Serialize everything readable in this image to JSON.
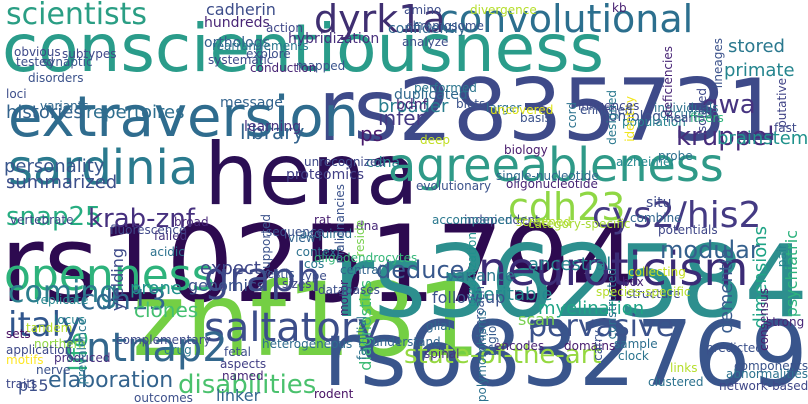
{
  "words": [
    {
      "text": "conscientiousness",
      "color": "#2a9c8a"
    },
    {
      "text": "rs2835731",
      "color": "#3e4a89"
    },
    {
      "text": "hena",
      "color": "#2b0f54"
    },
    {
      "text": "rs10251794",
      "color": "#2d0a50"
    },
    {
      "text": "znf181",
      "color": "#74cf44"
    },
    {
      "text": "rs362584",
      "color": "#2d8f8e"
    },
    {
      "text": "rs6832769",
      "color": "#39558c"
    },
    {
      "text": "extraversion",
      "color": "#2f6c8e"
    },
    {
      "text": "agreeableness",
      "color": "#2f9a88"
    },
    {
      "text": "sardinia",
      "color": "#2a7a8e"
    },
    {
      "text": "neuroticism",
      "color": "#3b2b76"
    },
    {
      "text": "openness",
      "color": "#2eb37c"
    },
    {
      "text": "convolutional",
      "color": "#2c6f8e"
    },
    {
      "text": "cdh23",
      "color": "#8fd744"
    },
    {
      "text": "cys2/his2",
      "color": "#443a83"
    },
    {
      "text": "saltatory",
      "color": "#3c4e8a"
    },
    {
      "text": "cntnap2",
      "color": "#33678d"
    },
    {
      "text": "graph",
      "color": "#3e4989"
    },
    {
      "text": "italy",
      "color": "#30568d"
    },
    {
      "text": "coming",
      "color": "#2c7e8e"
    },
    {
      "text": "dyrk1a",
      "color": "#3f2f71"
    },
    {
      "text": "scientists",
      "color": "#2a9e84"
    },
    {
      "text": "state-of-the-art",
      "color": "#95d840"
    },
    {
      "text": "snap25",
      "color": "#27ad81"
    },
    {
      "text": "krab-znf",
      "color": "#46307e"
    },
    {
      "text": "pervasive",
      "color": "#3b528b"
    },
    {
      "text": "cdh13",
      "color": "#31688e"
    },
    {
      "text": "disabilities",
      "color": "#4ac16d"
    },
    {
      "text": "modular",
      "color": "#35608d"
    },
    {
      "text": "deduce",
      "color": "#38588c"
    },
    {
      "text": "kruppel",
      "color": "#472d7b"
    },
    {
      "text": "gwa",
      "color": "#463480"
    },
    {
      "text": "ps",
      "color": "#481a6c"
    },
    {
      "text": "library",
      "color": "#33638d"
    },
    {
      "text": "life",
      "color": "#2fb47c"
    },
    {
      "text": "elaboration",
      "color": "#33638d"
    },
    {
      "text": "primate",
      "color": "#25858e"
    },
    {
      "text": "stored",
      "color": "#2a788e"
    },
    {
      "text": "brainstem",
      "color": "#20928c"
    },
    {
      "text": "infer",
      "color": "#443983"
    },
    {
      "text": "personality",
      "color": "#39568c"
    },
    {
      "text": "repertoires",
      "color": "#2e6e8e"
    },
    {
      "text": "histories",
      "color": "#33638d"
    },
    {
      "text": "broader",
      "color": "#287d8e"
    },
    {
      "text": "summarized",
      "color": "#3c4f8a"
    },
    {
      "text": "heritable",
      "color": "#23898e"
    },
    {
      "text": "dimensions",
      "color": "#20a486"
    },
    {
      "text": "dementia",
      "color": "#375b8d"
    },
    {
      "text": "psychiatric",
      "color": "#2db27d"
    },
    {
      "text": "prone",
      "color": "#21918c"
    },
    {
      "text": "clones",
      "color": "#44bf70"
    },
    {
      "text": "variance",
      "color": "#2a788e"
    },
    {
      "text": "expect",
      "color": "#3f4788"
    },
    {
      "text": "cadherin",
      "color": "#3d4d8a"
    },
    {
      "text": "hundreds",
      "color": "#482576"
    },
    {
      "text": "confidently",
      "color": "#31678e"
    },
    {
      "text": "hybridization",
      "color": "#472e7c"
    },
    {
      "text": "bdnf",
      "color": "#482878"
    },
    {
      "text": "ancestral",
      "color": "#26828e"
    },
    {
      "text": "yielding",
      "color": "#3e4a89"
    },
    {
      "text": "genomics",
      "color": "#3b528b"
    },
    {
      "text": "linker",
      "color": "#32658e"
    },
    {
      "text": "p15",
      "color": "#3c4f8a"
    },
    {
      "text": "message",
      "color": "#33638d"
    },
    {
      "text": "cdna",
      "color": "#24878e"
    },
    {
      "text": "scan",
      "color": "#7ad151"
    },
    {
      "text": "diagnostics",
      "color": "#3cbb75"
    },
    {
      "text": "fast",
      "color": "#3e4989"
    },
    {
      "text": "putative",
      "color": "#414487"
    },
    {
      "text": "myelination",
      "color": "#20a486"
    },
    {
      "text": "deep",
      "color": "#c2df23"
    },
    {
      "text": "situ",
      "color": "#3e4989"
    },
    {
      "text": "biology",
      "color": "#481b6d"
    },
    {
      "text": "homolog",
      "color": "#3b528b"
    },
    {
      "text": "orthologs",
      "color": "#355f8d"
    },
    {
      "text": "learning",
      "color": "#46337f"
    },
    {
      "text": "proteomics",
      "color": "#424086"
    },
    {
      "text": "duplicated",
      "color": "#31688e"
    },
    {
      "text": "follow-up",
      "color": "#3b528b"
    },
    {
      "text": "oligodendrocytes",
      "color": "#35b779"
    },
    {
      "text": "motor",
      "color": "#482173"
    },
    {
      "text": "rat",
      "color": "#482071"
    },
    {
      "text": "acquired",
      "color": "#2e6e8e"
    },
    {
      "text": "context",
      "color": "#2d718e"
    },
    {
      "text": "view",
      "color": "#33638d"
    },
    {
      "text": "sizes",
      "color": "#3f4788"
    },
    {
      "text": "testis",
      "color": "#3a538b"
    },
    {
      "text": "failed",
      "color": "#46327e"
    },
    {
      "text": "acidic",
      "color": "#2c728e"
    },
    {
      "text": "combine",
      "color": "#32658e"
    },
    {
      "text": "population",
      "color": "#26818e"
    },
    {
      "text": "alzheimer",
      "color": "#23888e"
    },
    {
      "text": "probe",
      "color": "#2d708e"
    },
    {
      "text": "enriched",
      "color": "#3b518b"
    },
    {
      "text": "glial",
      "color": "#31688e"
    },
    {
      "text": "encodes",
      "color": "#482576"
    },
    {
      "text": "spinal",
      "color": "#46337f"
    },
    {
      "text": "approach",
      "color": "#3a548c"
    },
    {
      "text": "fetal",
      "color": "#3d4e8a"
    },
    {
      "text": "aspects",
      "color": "#424086"
    },
    {
      "text": "named",
      "color": "#482878"
    },
    {
      "text": "heterogeneous",
      "color": "#2f6b8e"
    },
    {
      "text": "familial",
      "color": "#2c728e"
    },
    {
      "text": "understand",
      "color": "#32658e"
    },
    {
      "text": "domains",
      "color": "#481c6e"
    },
    {
      "text": "sample",
      "color": "#2e6f8e"
    },
    {
      "text": "clock",
      "color": "#2b748e"
    },
    {
      "text": "links",
      "color": "#b5de2b"
    },
    {
      "text": "predicted",
      "color": "#3b518b"
    },
    {
      "text": "components",
      "color": "#3a538b"
    },
    {
      "text": "consensus",
      "color": "#482071"
    },
    {
      "text": "abnormalities",
      "color": "#2c728e"
    },
    {
      "text": "network-based",
      "color": "#3f4788"
    },
    {
      "text": "clustered",
      "color": "#2c728e"
    },
    {
      "text": "rodent",
      "color": "#471164"
    },
    {
      "text": "outcomes",
      "color": "#3c4f8a"
    },
    {
      "text": "polymorphisms",
      "color": "#2d718e"
    },
    {
      "text": "drug",
      "color": "#2a788e"
    },
    {
      "text": "traits",
      "color": "#3e4989"
    },
    {
      "text": "nerve",
      "color": "#3b528b"
    },
    {
      "text": "produced",
      "color": "#472f7d"
    },
    {
      "text": "motifs",
      "color": "#fde725"
    },
    {
      "text": "northern",
      "color": "#8fd744"
    },
    {
      "text": "locus",
      "color": "#26828e"
    },
    {
      "text": "complementary",
      "color": "#3e4a89"
    },
    {
      "text": "application",
      "color": "#3e4989"
    },
    {
      "text": "sets",
      "color": "#470e61"
    },
    {
      "text": "tandem",
      "color": "#b8de29"
    },
    {
      "text": "replicate",
      "color": "#24868e"
    },
    {
      "text": "prevalence",
      "color": "#2a788e"
    },
    {
      "text": "vertebrate",
      "color": "#3f4788"
    },
    {
      "text": "fluorescence",
      "color": "#3f4889"
    },
    {
      "text": "broad",
      "color": "#482878"
    },
    {
      "text": "supported",
      "color": "#3b528b"
    },
    {
      "text": "sequence",
      "color": "#3b518b"
    },
    {
      "text": "cos",
      "color": "#2a788e"
    },
    {
      "text": "type",
      "color": "#3d4e8a"
    },
    {
      "text": "databases",
      "color": "#3c4f8a"
    },
    {
      "text": "central",
      "color": "#32658e"
    },
    {
      "text": "dna",
      "color": "#482979"
    },
    {
      "text": "malignancies",
      "color": "#3b528b"
    },
    {
      "text": "reside",
      "color": "#7ad151"
    },
    {
      "text": "unrecognized",
      "color": "#3e4989"
    },
    {
      "text": "independent",
      "color": "#3f4889"
    },
    {
      "text": "evolutionary",
      "color": "#3b528b"
    },
    {
      "text": "single-nucleotide",
      "color": "#31688e"
    },
    {
      "text": "oligonucleotide",
      "color": "#482576"
    },
    {
      "text": "screened",
      "color": "#b2dd2d"
    },
    {
      "text": "category-specific",
      "color": "#a8db34"
    },
    {
      "text": "accompanied",
      "color": "#2a788e"
    },
    {
      "text": "organization",
      "color": "#21908d"
    },
    {
      "text": "region",
      "color": "#375b8d"
    },
    {
      "text": "carry",
      "color": "#3a538b"
    },
    {
      "text": "constructed",
      "color": "#2c728e"
    },
    {
      "text": "collecting",
      "color": "#c5e021"
    },
    {
      "text": "box",
      "color": "#482374"
    },
    {
      "text": "structure",
      "color": "#3e4989"
    },
    {
      "text": "species-specific",
      "color": "#b5de2b"
    },
    {
      "text": "strong",
      "color": "#482878"
    },
    {
      "text": "potentials",
      "color": "#3f4788"
    },
    {
      "text": "pair",
      "color": "#25848e"
    },
    {
      "text": "individuals",
      "color": "#2d718e"
    },
    {
      "text": "occurred",
      "color": "#2c728e"
    },
    {
      "text": "heart",
      "color": "#3f4788"
    },
    {
      "text": "fibers",
      "color": "#2fb47c"
    },
    {
      "text": "designed",
      "color": "#2a788e"
    },
    {
      "text": "identity",
      "color": "#f1e51d"
    },
    {
      "text": "performed",
      "color": "#2b758e"
    },
    {
      "text": "biots",
      "color": "#3b528b"
    },
    {
      "text": "larger",
      "color": "#2d708e"
    },
    {
      "text": "uncovered",
      "color": "#dde318"
    },
    {
      "text": "basis",
      "color": "#3b528b"
    },
    {
      "text": "influences",
      "color": "#3f4788"
    },
    {
      "text": "cord",
      "color": "#2c728e"
    },
    {
      "text": "deficiencies",
      "color": "#482576"
    },
    {
      "text": "isolated",
      "color": "#3e4989"
    },
    {
      "text": "lineages",
      "color": "#3b528b"
    },
    {
      "text": "kb",
      "color": "#482071"
    },
    {
      "text": "amino",
      "color": "#3d4d8a"
    },
    {
      "text": "divergence",
      "color": "#b5de2b"
    },
    {
      "text": "chromosome",
      "color": "#3b528b"
    },
    {
      "text": "analyze",
      "color": "#3d4e8a"
    },
    {
      "text": "action",
      "color": "#3f4788"
    },
    {
      "text": "rearrangements",
      "color": "#2a788e"
    },
    {
      "text": "systematic",
      "color": "#3e4989"
    },
    {
      "text": "explore",
      "color": "#3c4f8a"
    },
    {
      "text": "mapped",
      "color": "#3a548c"
    },
    {
      "text": "conduction",
      "color": "#482475"
    },
    {
      "text": "subtypes",
      "color": "#3f4889"
    },
    {
      "text": "tested",
      "color": "#3d4e8a"
    },
    {
      "text": "disorders",
      "color": "#3b528b"
    },
    {
      "text": "obvious",
      "color": "#3e4989"
    },
    {
      "text": "synaptic",
      "color": "#3a548c"
    },
    {
      "text": "loci",
      "color": "#3d4e8a"
    },
    {
      "text": "variants",
      "color": "#31688e"
    }
  ]
}
